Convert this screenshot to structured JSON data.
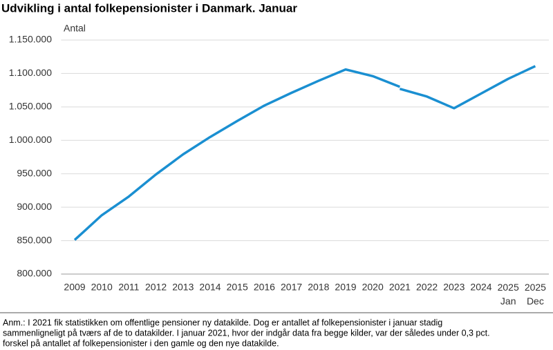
{
  "chart_data": {
    "type": "line",
    "title": "Udvikling i antal folkepensionister i Danmark. Januar",
    "y_label": "Antal",
    "categories": [
      "2009",
      "2010",
      "2011",
      "2012",
      "2013",
      "2014",
      "2015",
      "2016",
      "2017",
      "2018",
      "2019",
      "2020",
      "2021",
      "2022",
      "2023",
      "2024",
      "2025 Jan",
      "2025 Dec"
    ],
    "series": [
      {
        "color": "#1a8fd1",
        "values": [
          851000,
          888000,
          916000,
          949000,
          979000,
          1005000,
          1029000,
          1052000,
          1071000,
          1089000,
          1106000,
          1096000,
          1080000,
          null,
          null,
          null,
          null,
          null
        ]
      },
      {
        "color": "#1a8fd1",
        "values": [
          null,
          null,
          null,
          null,
          null,
          null,
          null,
          null,
          null,
          null,
          null,
          null,
          1077000,
          1065500,
          1048000,
          1070000,
          1092000,
          1111000
        ]
      }
    ],
    "ylim": [
      800000,
      1150000
    ],
    "yticks": [
      {
        "value": 800000,
        "label": "800.000"
      },
      {
        "value": 850000,
        "label": "850.000"
      },
      {
        "value": 900000,
        "label": "900.000"
      },
      {
        "value": 950000,
        "label": "950.000"
      },
      {
        "value": 1000000,
        "label": "1.000.000"
      },
      {
        "value": 1050000,
        "label": "1.050.000"
      },
      {
        "value": 1100000,
        "label": "1.100.000"
      },
      {
        "value": 1150000,
        "label": "1.150.000"
      }
    ],
    "grid": true,
    "note": [
      "Anm.: I 2021 fik statistikken om offentlige pensioner ny datakilde. Dog er antallet af folkepensionister i januar stadig",
      "sammenligneligt på tværs af de to datakilder. I januar 2021, hvor der indgår data fra begge kilder, var der således under 0,3 pct.",
      "forskel på antallet af folkepensionister i den gamle og den nye datakilde."
    ]
  }
}
